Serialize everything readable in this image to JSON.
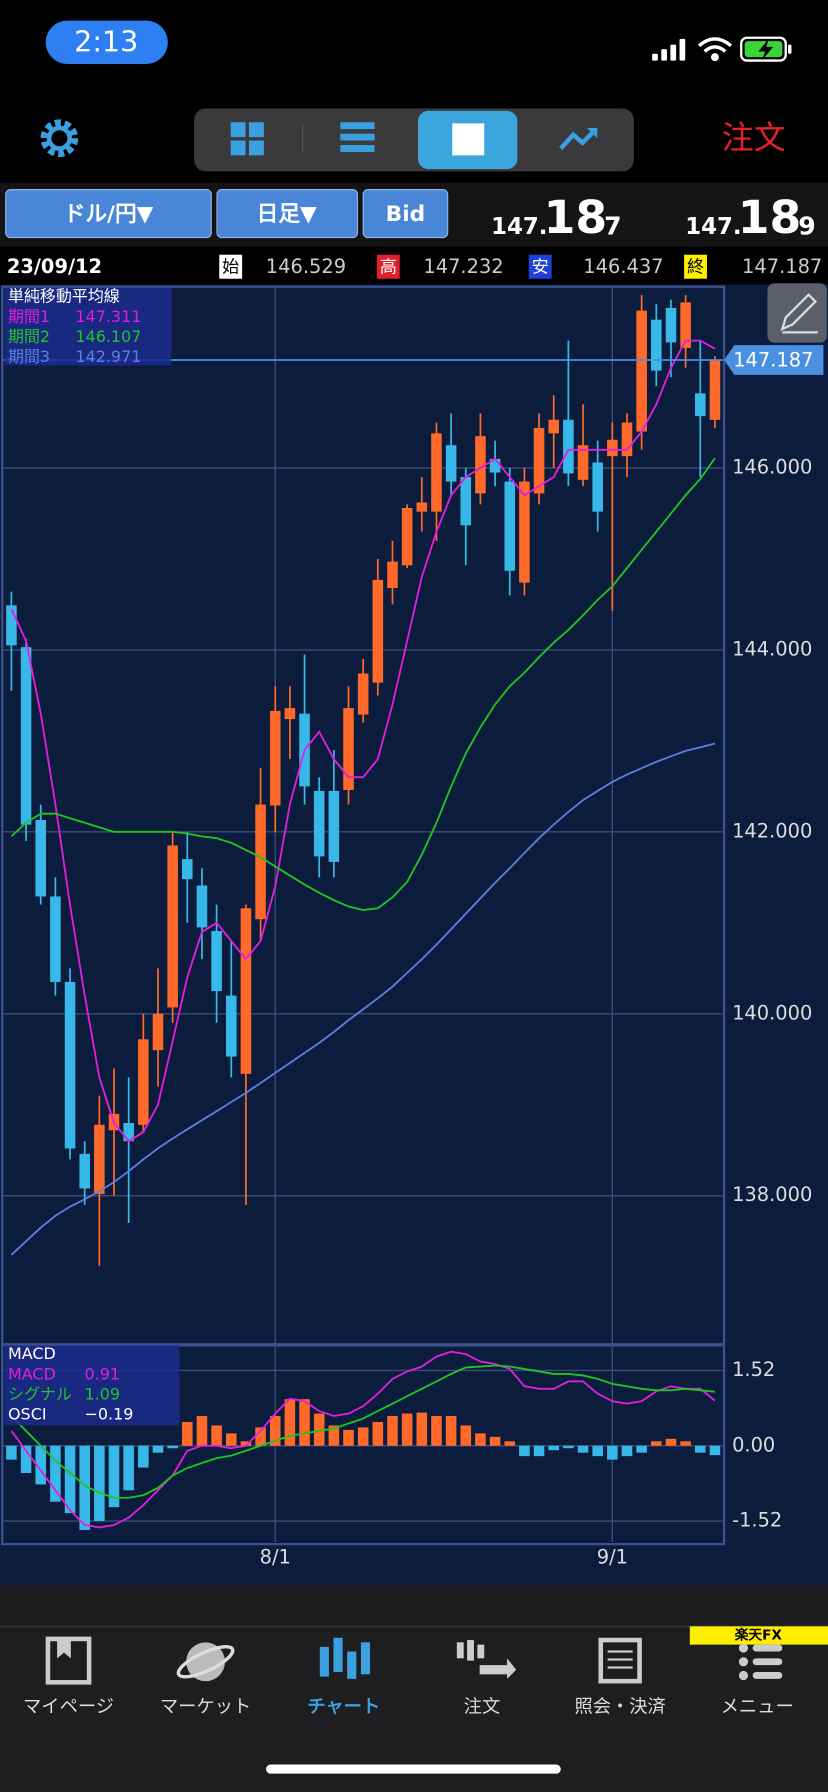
{
  "status_bar": {
    "time": "2:13"
  },
  "toolbar": {
    "order_button": "注文"
  },
  "controls": {
    "pair": "ドル/円▼",
    "period": "日足▼",
    "side": "Bid"
  },
  "quote": {
    "bid": {
      "big": "147.",
      "mid": "18",
      "small": "7"
    },
    "ask": {
      "big": "147.",
      "mid": "18",
      "small": "9"
    }
  },
  "ohlc_bar": {
    "date": "23/09/12",
    "labels": [
      "始",
      "高",
      "安",
      "終"
    ],
    "values": [
      146.529,
      147.232,
      146.437,
      147.187
    ]
  },
  "chart_data": [
    {
      "type": "candlestick",
      "legend_title": "単純移動平均線",
      "categories": [
        null,
        null,
        null,
        null,
        null,
        null,
        null,
        null,
        null,
        null,
        null,
        null,
        null,
        null,
        null,
        null,
        null,
        null,
        "8/1",
        null,
        null,
        null,
        null,
        null,
        null,
        null,
        null,
        null,
        null,
        null,
        null,
        null,
        null,
        null,
        null,
        null,
        null,
        null,
        null,
        null,
        null,
        "9/1",
        null,
        null,
        null,
        null,
        null,
        null,
        null
      ],
      "open": [
        144.49,
        144.03,
        142.13,
        141.29,
        140.35,
        138.46,
        138.02,
        138.72,
        138.8,
        138.78,
        139.6,
        140.07,
        141.7,
        141.41,
        140.91,
        140.2,
        139.34,
        141.04,
        142.29,
        143.24,
        143.3,
        142.45,
        142.45,
        142.46,
        143.29,
        143.64,
        144.68,
        144.93,
        145.52,
        145.52,
        146.25,
        145.9,
        145.72,
        146.1,
        145.85,
        144.74,
        145.72,
        146.38,
        146.53,
        145.87,
        146.06,
        146.13,
        146.13,
        146.4,
        147.63,
        147.76,
        147.32,
        146.82,
        146.529
      ],
      "high": [
        144.64,
        144.12,
        142.3,
        141.5,
        140.5,
        138.6,
        139.1,
        139.4,
        139.3,
        140.0,
        140.5,
        142.0,
        142.0,
        141.6,
        141.2,
        140.8,
        141.2,
        142.7,
        143.6,
        143.6,
        143.95,
        142.6,
        142.9,
        143.6,
        143.9,
        145.0,
        145.2,
        145.6,
        145.9,
        146.5,
        146.6,
        146.0,
        146.6,
        146.3,
        146.0,
        146.0,
        146.6,
        146.8,
        147.4,
        146.7,
        146.3,
        146.5,
        146.6,
        147.9,
        147.8,
        147.85,
        147.9,
        147.4,
        147.232
      ],
      "low": [
        143.55,
        141.9,
        141.2,
        140.2,
        138.4,
        137.9,
        137.23,
        138.0,
        137.7,
        138.7,
        139.2,
        139.9,
        141.0,
        140.6,
        139.9,
        139.3,
        137.9,
        140.8,
        142.0,
        142.8,
        142.3,
        141.5,
        141.5,
        142.3,
        143.2,
        143.5,
        144.5,
        144.9,
        145.3,
        145.2,
        145.7,
        144.93,
        145.6,
        145.8,
        144.6,
        144.6,
        145.6,
        146.0,
        145.8,
        145.8,
        145.3,
        144.43,
        145.9,
        146.2,
        146.9,
        147.0,
        147.1,
        145.9,
        146.437
      ],
      "close": [
        144.05,
        142.08,
        141.29,
        140.35,
        138.52,
        138.08,
        138.78,
        138.9,
        138.6,
        139.72,
        140.0,
        141.85,
        141.48,
        140.95,
        140.25,
        139.53,
        141.16,
        142.3,
        143.33,
        143.36,
        142.5,
        141.73,
        141.67,
        143.36,
        143.74,
        144.77,
        144.97,
        145.56,
        145.62,
        146.38,
        145.85,
        145.37,
        146.35,
        145.95,
        144.87,
        145.85,
        146.44,
        146.53,
        145.94,
        146.25,
        145.52,
        146.31,
        146.5,
        147.73,
        147.07,
        147.38,
        147.82,
        146.57,
        147.187
      ],
      "up_color": "#ff6a2b",
      "down_color": "#38b8e8",
      "series": [
        {
          "name": "期間1",
          "color": "#e21ee2",
          "legend_value": 147.311,
          "values": [
            144.45,
            144.1,
            143.3,
            142.3,
            141.2,
            140.2,
            139.3,
            138.8,
            138.6,
            138.7,
            139.0,
            139.7,
            140.4,
            140.9,
            141.0,
            140.8,
            140.6,
            140.8,
            141.4,
            142.3,
            142.9,
            143.1,
            142.8,
            142.6,
            142.6,
            142.8,
            143.4,
            144.1,
            144.8,
            145.3,
            145.7,
            145.9,
            146.0,
            146.1,
            145.9,
            145.7,
            145.8,
            145.9,
            146.2,
            146.2,
            146.2,
            146.2,
            146.2,
            146.4,
            146.7,
            147.1,
            147.4,
            147.4,
            147.311
          ]
        },
        {
          "name": "期間2",
          "color": "#22c422",
          "legend_value": 146.107,
          "values": [
            141.95,
            142.1,
            142.2,
            142.2,
            142.15,
            142.1,
            142.05,
            142.0,
            142.0,
            142.0,
            142.0,
            142.0,
            141.98,
            141.95,
            141.93,
            141.88,
            141.8,
            141.72,
            141.62,
            141.52,
            141.42,
            141.33,
            141.25,
            141.18,
            141.14,
            141.16,
            141.28,
            141.45,
            141.75,
            142.1,
            142.5,
            142.86,
            143.15,
            143.4,
            143.6,
            143.75,
            143.92,
            144.08,
            144.22,
            144.38,
            144.55,
            144.7,
            144.9,
            145.1,
            145.3,
            145.5,
            145.7,
            145.88,
            146.107
          ]
        },
        {
          "name": "期間3",
          "color": "#5a80e0",
          "legend_value": 142.971,
          "values": [
            137.35,
            137.5,
            137.65,
            137.78,
            137.88,
            137.96,
            138.05,
            138.15,
            138.27,
            138.4,
            138.52,
            138.63,
            138.73,
            138.83,
            138.93,
            139.03,
            139.13,
            139.24,
            139.35,
            139.46,
            139.57,
            139.68,
            139.8,
            139.93,
            140.05,
            140.17,
            140.3,
            140.45,
            140.6,
            140.76,
            140.93,
            141.1,
            141.27,
            141.44,
            141.6,
            141.77,
            141.93,
            142.08,
            142.22,
            142.35,
            142.45,
            142.55,
            142.63,
            142.7,
            142.77,
            142.83,
            142.89,
            142.93,
            142.971
          ]
        }
      ],
      "ylim": [
        136.38,
        147.98
      ],
      "yticks": [
        {
          "value": 138,
          "label": "138.000"
        },
        {
          "value": 140,
          "label": "140.000"
        },
        {
          "value": 142,
          "label": "142.000"
        },
        {
          "value": 144,
          "label": "144.000"
        },
        {
          "value": 146,
          "label": "146.000"
        }
      ],
      "last_price": 147.187,
      "grid": true
    },
    {
      "type": "macd",
      "title": "MACD",
      "series": [
        {
          "name": "MACD",
          "color": "#e21ee2",
          "legend_value": 0.91,
          "values": [
            0.3,
            -0.1,
            -0.5,
            -0.9,
            -1.3,
            -1.6,
            -1.65,
            -1.6,
            -1.45,
            -1.2,
            -0.9,
            -0.6,
            -0.1,
            0.0,
            0.0,
            -0.05,
            0.0,
            0.3,
            0.65,
            0.95,
            0.9,
            0.7,
            0.6,
            0.65,
            0.8,
            1.05,
            1.35,
            1.5,
            1.6,
            1.8,
            1.9,
            1.85,
            1.7,
            1.65,
            1.55,
            1.2,
            1.15,
            1.15,
            1.3,
            1.3,
            1.05,
            0.9,
            0.85,
            0.9,
            1.1,
            1.2,
            1.15,
            1.15,
            0.91
          ]
        },
        {
          "name": "シグナル",
          "color": "#22c422",
          "legend_value": 1.09,
          "values": [
            0.6,
            0.3,
            0.0,
            -0.3,
            -0.55,
            -0.8,
            -0.95,
            -1.05,
            -1.05,
            -1.0,
            -0.85,
            -0.6,
            -0.45,
            -0.35,
            -0.25,
            -0.2,
            -0.1,
            0.0,
            0.1,
            0.2,
            0.25,
            0.3,
            0.35,
            0.45,
            0.55,
            0.7,
            0.85,
            1.0,
            1.15,
            1.3,
            1.45,
            1.58,
            1.6,
            1.62,
            1.6,
            1.55,
            1.5,
            1.45,
            1.45,
            1.42,
            1.35,
            1.25,
            1.2,
            1.15,
            1.12,
            1.12,
            1.15,
            1.12,
            1.09
          ]
        }
      ],
      "osci": {
        "name": "OSCI",
        "legend_label": "−0.19",
        "up_color": "#ff6a2b",
        "down_color": "#38b8e8",
        "values": [
          -0.28,
          -0.55,
          -0.78,
          -1.13,
          -1.36,
          -1.7,
          -1.52,
          -1.24,
          -0.9,
          -0.44,
          -0.14,
          -0.05,
          0.48,
          0.6,
          0.41,
          0.25,
          0.09,
          0.37,
          0.6,
          0.94,
          0.94,
          0.65,
          0.41,
          0.32,
          0.37,
          0.48,
          0.6,
          0.65,
          0.67,
          0.6,
          0.6,
          0.41,
          0.25,
          0.18,
          0.09,
          -0.21,
          -0.21,
          -0.09,
          -0.05,
          -0.14,
          -0.21,
          -0.28,
          -0.21,
          -0.14,
          0.09,
          0.14,
          0.09,
          -0.14,
          -0.19
        ]
      },
      "ylim": [
        -1.94,
        1.98
      ],
      "yticks": [
        -1.52,
        {
          "value": 0,
          "label": "0.00"
        },
        1.52
      ]
    }
  ],
  "tab_bar": {
    "brand": "楽天FX",
    "items": [
      "マイページ",
      "マーケット",
      "チャート",
      "注文",
      "照会・決済",
      "メニュー"
    ]
  }
}
